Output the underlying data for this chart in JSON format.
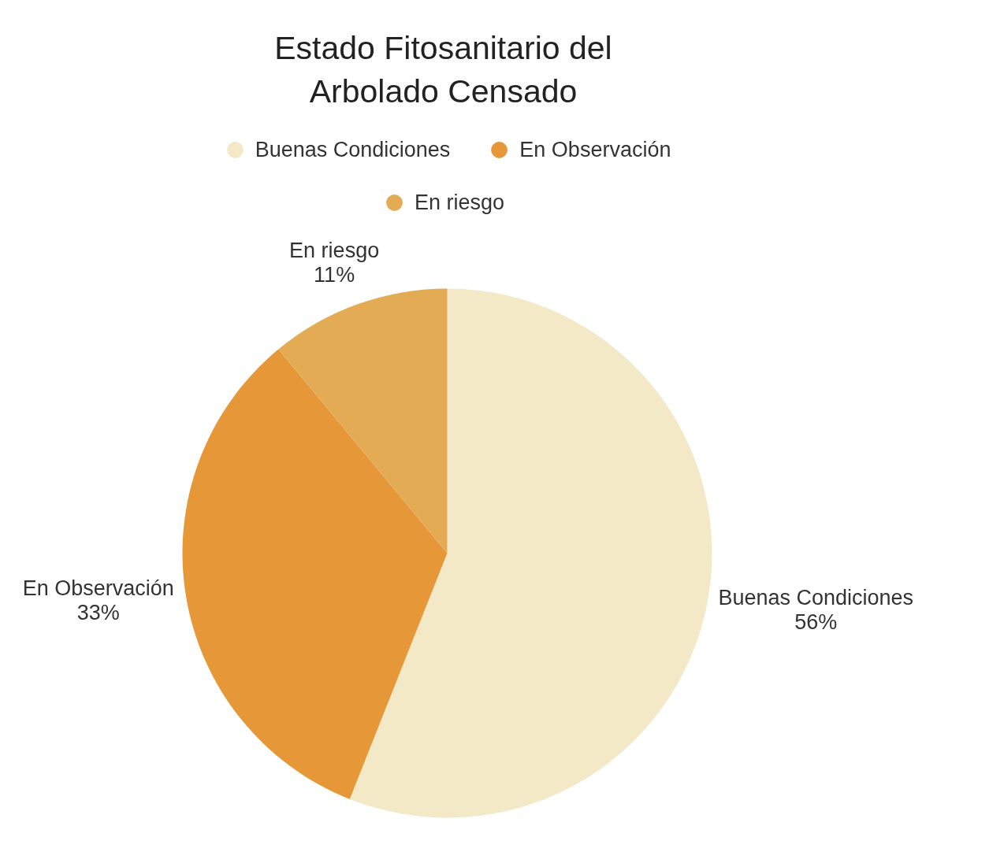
{
  "chart_data": {
    "type": "pie",
    "title": "Estado Fitosanitario del Arbolado Censado",
    "categories": [
      "Buenas Condiciones",
      "En Observación",
      "En riesgo"
    ],
    "values": [
      56,
      33,
      11
    ],
    "value_labels": [
      "56%",
      "33%",
      "11%"
    ],
    "colors": [
      "#f3e9c6",
      "#e69737",
      "#e3ac54"
    ],
    "legend": "top"
  }
}
